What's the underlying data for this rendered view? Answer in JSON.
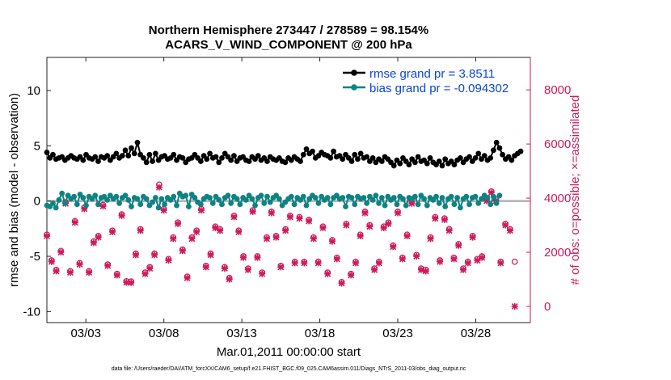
{
  "chart_data": {
    "type": "line",
    "title_line1": "Northern Hemisphere 273447 / 278589 = 98.154%",
    "title_line2": "ACARS_V_WIND_COMPONENT @ 200 hPa",
    "xlabel": "Mar.01,2011 00:00:00 start",
    "ylabel_left": "rmse and bias (model - observation)",
    "ylabel_right": "# of obs: o=possible; ×=assimilated",
    "footnote": "data file: /Users/raeder/DAI/ATM_forcXX/CAM6_setup/f.e21.FHIST_BGC.f09_025.CAM6assim.011/Diags_NTrS_2011-03/obs_diag_output.nc",
    "x_range_days": [
      0.5,
      31.5
    ],
    "x_ticks": [
      {
        "value": 3,
        "label": "03/03"
      },
      {
        "value": 8,
        "label": "03/08"
      },
      {
        "value": 13,
        "label": "03/13"
      },
      {
        "value": 18,
        "label": "03/18"
      },
      {
        "value": 23,
        "label": "03/23"
      },
      {
        "value": 28,
        "label": "03/28"
      }
    ],
    "ylim_left": [
      -11,
      13
    ],
    "y_ticks_left": [
      -10,
      -5,
      0,
      5,
      10
    ],
    "ylim_right": [
      -600,
      9200
    ],
    "y_ticks_right": [
      0,
      2000,
      4000,
      6000,
      8000
    ],
    "zero_line": 0,
    "series": [
      {
        "name": "rmse",
        "legend_label": "rmse grand pr = 3.8511",
        "color": "#000000",
        "axis": "left",
        "values": [
          4.4,
          3.9,
          4.2,
          3.8,
          3.9,
          4.0,
          3.7,
          3.9,
          4.1,
          3.9,
          3.8,
          4.0,
          3.7,
          4.2,
          3.9,
          3.8,
          4.0,
          3.6,
          4.0,
          3.9,
          4.1,
          3.7,
          4.0,
          4.3,
          3.9,
          4.1,
          4.6,
          4.1,
          4.8,
          4.3,
          5.3,
          4.2,
          3.9,
          3.5,
          4.2,
          3.6,
          4.3,
          3.7,
          4.0,
          4.1,
          3.8,
          3.9,
          4.2,
          3.7,
          4.0,
          3.9,
          3.5,
          3.8,
          3.9,
          4.2,
          3.9,
          3.6,
          4.1,
          3.8,
          4.3,
          3.9,
          4.0,
          3.5,
          3.9,
          4.3,
          4.0,
          3.7,
          4.1,
          3.6,
          3.9,
          4.0,
          3.7,
          3.6,
          4.0,
          3.8,
          4.1,
          3.7,
          3.9,
          3.6,
          4.0,
          3.8,
          3.7,
          3.9,
          3.6,
          3.5,
          3.9,
          3.7,
          4.0,
          3.8,
          3.6,
          4.2,
          4.7,
          4.3,
          4.5,
          3.9,
          4.1,
          4.4,
          4.2,
          4.1,
          3.9,
          4.5,
          4.0,
          4.1,
          3.8,
          4.2,
          3.9,
          3.6,
          4.2,
          3.8,
          4.3,
          3.9,
          4.0,
          3.6,
          3.9,
          3.5,
          3.8,
          3.6,
          4.0,
          3.8,
          3.5,
          3.2,
          3.7,
          3.4,
          3.9,
          3.6,
          3.3,
          3.8,
          3.5,
          4.0,
          3.6,
          3.7,
          3.4,
          3.9,
          3.5,
          3.3,
          3.6,
          3.2,
          3.8,
          3.4,
          3.6,
          3.3,
          3.7,
          3.9,
          3.5,
          3.8,
          4.0,
          3.6,
          3.9,
          4.3,
          3.8,
          4.1,
          3.7,
          3.9,
          4.6,
          5.3,
          4.8,
          4.2,
          3.8,
          4.0,
          3.7,
          4.1,
          4.3,
          4.5
        ],
        "x_start": 0.5,
        "x_step": 0.1935
      },
      {
        "name": "bias",
        "legend_label": "bias grand pr = -0.094302",
        "color": "#0e8383",
        "axis": "left",
        "values": [
          -0.4,
          -0.5,
          -0.2,
          -0.6,
          0.1,
          0.7,
          -0.2,
          0.5,
          0.2,
          0.4,
          -0.3,
          0.6,
          0.3,
          -0.4,
          0.4,
          0.2,
          0.5,
          -0.3,
          0.3,
          0.4,
          0.1,
          0.5,
          0.2,
          0.4,
          -0.2,
          0.3,
          0.5,
          0.1,
          -0.5,
          0.3,
          0.2,
          -0.3,
          0.4,
          0.2,
          -0.4,
          -0.1,
          0.3,
          -0.6,
          0.2,
          -0.3,
          0.3,
          0.1,
          0.4,
          -0.4,
          0.7,
          0.4,
          0.5,
          -0.5,
          0.6,
          0.3,
          -0.1,
          -0.3,
          0.2,
          0.4,
          0.3,
          -0.2,
          0.4,
          0.1,
          -0.3,
          0.3,
          0.5,
          -0.2,
          0.4,
          0.2,
          -0.3,
          0.3,
          0.1,
          0.5,
          0.2,
          -0.4,
          0.3,
          0.5,
          -0.2,
          0.4,
          -0.1,
          0.3,
          0.5,
          0.2,
          -0.4,
          -0.1,
          0.2,
          0.4,
          -0.3,
          0.3,
          0.1,
          0.4,
          -0.4,
          0.2,
          0.5,
          0.3,
          -0.2,
          0.4,
          0.1,
          0.3,
          -0.3,
          0.3,
          0.5,
          0.2,
          0.3,
          -0.5,
          0.4,
          0.3,
          -0.3,
          0.4,
          0.2,
          0.3,
          -0.2,
          0.4,
          0.1,
          0.5,
          -0.2,
          0.3,
          -0.4,
          0.4,
          0.1,
          0.3,
          -0.3,
          0.4,
          0.2,
          -0.4,
          0.3,
          0.2,
          0.4,
          -0.3,
          0.5,
          0.2,
          -0.4,
          0.3,
          0.1,
          0.4,
          -0.2,
          0.3,
          -0.5,
          0.2,
          0.4,
          -0.3,
          0.3,
          -0.6,
          0.2,
          0.4,
          -0.3,
          0.3,
          0.4,
          -0.2,
          0.2,
          0.5,
          0.3,
          -0.3,
          0.4,
          -0.2,
          0.5
        ],
        "x_start": 0.5,
        "x_step": 0.1935
      },
      {
        "name": "obs_possible",
        "legend_label": "",
        "color": "#cc1a5c",
        "axis": "right",
        "marker": "o",
        "values": [
          2650,
          1700,
          1350,
          2050,
          3850,
          1300,
          3150,
          1600,
          3650,
          1300,
          2400,
          2600,
          3750,
          1550,
          2800,
          1200,
          3400,
          930,
          920,
          1950,
          2850,
          1250,
          1450,
          1950,
          4500,
          3600,
          1750,
          2550,
          3100,
          2100,
          1100,
          2550,
          2800,
          3600,
          1500,
          1950,
          2950,
          2850,
          1450,
          1050,
          3350,
          2800,
          1850,
          1400,
          3550,
          1850,
          1250,
          2550,
          3500,
          2600,
          1500,
          2850,
          3350,
          1650,
          3300,
          1650,
          3200,
          2550,
          1650,
          2950,
          1250,
          2450,
          1800,
          900,
          3050,
          1200,
          1650,
          2650,
          3500,
          3000,
          1400,
          1650,
          2950,
          3100,
          2250,
          3500,
          1800,
          2650,
          3850,
          1900,
          1400,
          1350,
          2550,
          3300,
          1700,
          3250,
          2850,
          1800,
          2300,
          1400,
          1650,
          2600,
          1750,
          1850,
          3950,
          4250,
          3950,
          1650,
          3050,
          2850,
          1650
        ],
        "x_start": 0.5,
        "x_step": 0.3
      },
      {
        "name": "obs_assimilated",
        "legend_label": "",
        "color": "#cc1a5c",
        "axis": "right",
        "marker": "x",
        "values": [
          2600,
          1650,
          1300,
          2000,
          3800,
          1250,
          3100,
          1550,
          3600,
          1250,
          2350,
          2550,
          3700,
          1500,
          2750,
          1150,
          3350,
          880,
          870,
          1900,
          2800,
          1200,
          1400,
          1900,
          4400,
          3550,
          1700,
          2500,
          3050,
          2050,
          1050,
          2500,
          2750,
          3550,
          1450,
          1900,
          2900,
          2800,
          1400,
          1000,
          3300,
          2750,
          1800,
          1350,
          3500,
          1800,
          1200,
          2500,
          3450,
          2550,
          1450,
          2800,
          3300,
          1600,
          3250,
          1600,
          3150,
          2500,
          1600,
          2900,
          1200,
          2400,
          1750,
          850,
          3000,
          1150,
          1600,
          2600,
          3450,
          2950,
          1350,
          1600,
          2900,
          3050,
          2200,
          3450,
          1750,
          2600,
          3800,
          1850,
          1350,
          1300,
          2500,
          3250,
          1650,
          3200,
          2800,
          1750,
          2250,
          1350,
          1600,
          2550,
          1700,
          1800,
          3900,
          4200,
          3900,
          1600,
          3000,
          2800,
          0
        ],
        "x_start": 0.5,
        "x_step": 0.3
      }
    ],
    "grid": false,
    "legend_position": "top-right"
  }
}
